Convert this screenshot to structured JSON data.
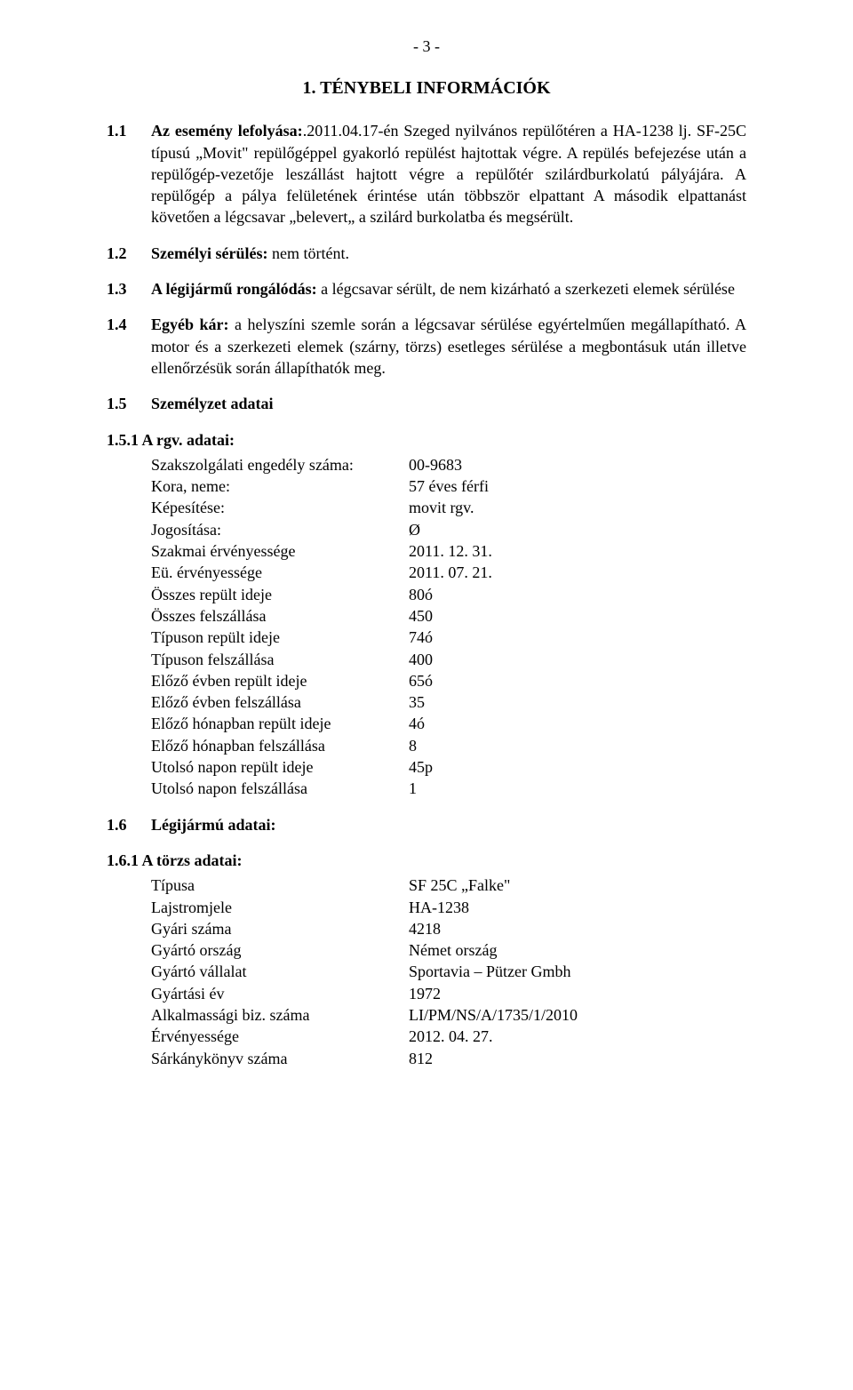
{
  "page_number": "- 3 -",
  "h1": "1.   TÉNYBELI INFORMÁCIÓK",
  "s_1_1": {
    "num": "1.1",
    "label": "Az esemény lefolyása:",
    "text": ".2011.04.17-én Szeged nyilvános repülőtéren a HA-1238 lj. SF-25C típusú „Movit\" repülőgéppel gyakorló repülést hajtottak végre. A repülés befejezése után a repülőgép-vezetője leszállást hajtott végre a repülőtér szilárdburkolatú pályájára. A repülőgép a pálya felületének érintése után többször elpattant A második elpattanást követően a légcsavar „belevert„ a szilárd burkolatba és megsérült."
  },
  "s_1_2": {
    "num": "1.2",
    "label": "Személyi sérülés:",
    "text": " nem történt."
  },
  "s_1_3": {
    "num": "1.3",
    "label": "A légijármű rongálódás:",
    "text": " a légcsavar sérült, de nem kizárható a szerkezeti elemek sérülése"
  },
  "s_1_4": {
    "num": "1.4",
    "label": "Egyéb kár:",
    "text": " a helyszíni szemle során a légcsavar sérülése egyértelműen megállapítható. A motor és a szerkezeti elemek (szárny, törzs) esetleges sérülése a megbontásuk után illetve ellenőrzésük során állapíthatók meg."
  },
  "s_1_5": {
    "num": "1.5",
    "label": "Személyzet adatai"
  },
  "s_1_5_1": {
    "head": "1.5.1  A rgv. adatai:",
    "rows": [
      {
        "k": "Szakszolgálati engedély száma:",
        "v": "00-9683"
      },
      {
        "k": "Kora, neme:",
        "v": "57 éves férfi"
      },
      {
        "k": "Képesítése:",
        "v": "movit rgv."
      },
      {
        "k": "Jogosítása:",
        "v": "Ø"
      },
      {
        "k": "Szakmai érvényessége",
        "v": "2011. 12. 31."
      },
      {
        "k": "Eü. érvényessége",
        "v": "2011. 07. 21."
      },
      {
        "k": "Összes repült ideje",
        "v": "80ó"
      },
      {
        "k": "Összes felszállása",
        "v": "450"
      },
      {
        "k": "Típuson repült ideje",
        "v": "74ó"
      },
      {
        "k": "Típuson felszállása",
        "v": "400"
      },
      {
        "k": "Előző évben repült ideje",
        "v": "65ó"
      },
      {
        "k": "Előző évben felszállása",
        "v": "35"
      },
      {
        "k": "Előző hónapban repült ideje",
        "v": "4ó"
      },
      {
        "k": "Előző hónapban felszállása",
        "v": "8"
      },
      {
        "k": "Utolsó napon repült ideje",
        "v": "45p"
      },
      {
        "k": "Utolsó napon felszállása",
        "v": "1"
      }
    ]
  },
  "s_1_6": {
    "num": "1.6",
    "label": "Légijármú adatai:"
  },
  "s_1_6_1": {
    "head": "1.6.1  A törzs adatai:",
    "rows": [
      {
        "k": "Típusa",
        "v": "SF 25C „Falke\""
      },
      {
        "k": "Lajstromjele",
        "v": "HA-1238"
      },
      {
        "k": "Gyári száma",
        "v": "4218"
      },
      {
        "k": "Gyártó ország",
        "v": "Német ország"
      },
      {
        "k": "Gyártó vállalat",
        "v": "Sportavia – Pützer Gmbh"
      },
      {
        "k": "Gyártási év",
        "v": "1972"
      },
      {
        "k": "Alkalmassági biz. száma",
        "v": "LI/PM/NS/A/1735/1/2010"
      },
      {
        "k": "Érvényessége",
        "v": "2012. 04. 27."
      },
      {
        "k": "Sárkánykönyv száma",
        "v": "812"
      }
    ]
  }
}
